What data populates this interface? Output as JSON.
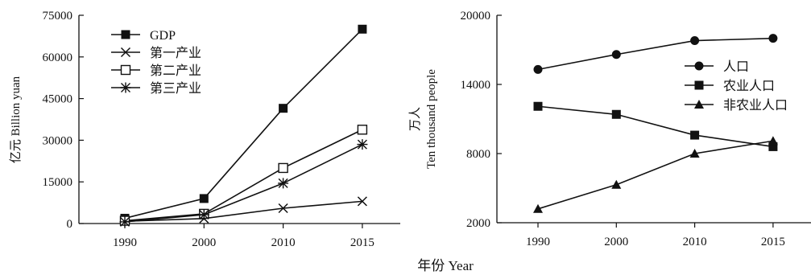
{
  "x_axis_title": "年份 Year",
  "chart_data": [
    {
      "type": "line",
      "categories": [
        "1990",
        "2000",
        "2010",
        "2015"
      ],
      "ylabel": "亿元 Billion yuan",
      "ylim": [
        0,
        75000
      ],
      "yticks": [
        "0",
        "15000",
        "30000",
        "45000",
        "60000",
        "75000"
      ],
      "legend_position": "top-left",
      "series": [
        {
          "name": "GDP",
          "marker": "filled-square",
          "values": [
            1900,
            9000,
            41500,
            70000
          ]
        },
        {
          "name": "第一产业",
          "marker": "x-cross",
          "values": [
            800,
            1800,
            5500,
            8000
          ]
        },
        {
          "name": "第二产业",
          "marker": "open-square",
          "values": [
            1000,
            3500,
            20000,
            33800
          ]
        },
        {
          "name": "第三产业",
          "marker": "asterisk",
          "values": [
            600,
            3200,
            14500,
            28500
          ]
        }
      ]
    },
    {
      "type": "line",
      "categories": [
        "1990",
        "2000",
        "2010",
        "2015"
      ],
      "ylabel": "万人 Ten thousand people",
      "ylim": [
        2000,
        20000
      ],
      "yticks": [
        "2000",
        "8000",
        "14000",
        "20000"
      ],
      "legend_position": "right",
      "series": [
        {
          "name": "人口",
          "marker": "filled-circle",
          "values": [
            15300,
            16600,
            17800,
            18000
          ]
        },
        {
          "name": "农业人口",
          "marker": "filled-square",
          "values": [
            12100,
            11400,
            9600,
            8600
          ]
        },
        {
          "name": "非农业人口",
          "marker": "filled-triangle",
          "values": [
            3200,
            5300,
            8000,
            9100
          ]
        }
      ]
    }
  ]
}
